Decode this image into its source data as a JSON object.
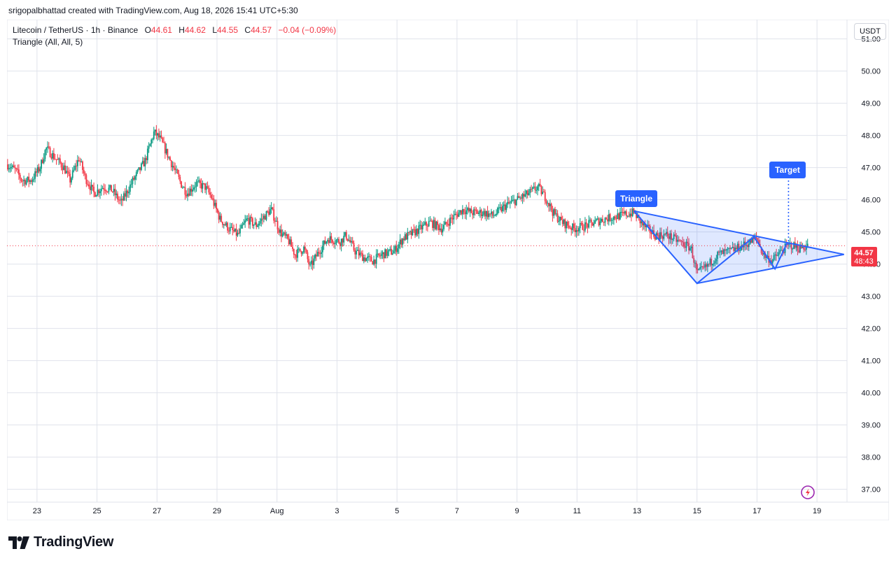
{
  "header": {
    "credit": "srigopalbhattad created with TradingView.com, Aug 18, 2026 15:41 UTC+5:30"
  },
  "legend": {
    "symbol": "Litecoin / TetherUS · 1h · Binance",
    "open_label": "O",
    "open": "44.61",
    "high_label": "H",
    "high": "44.62",
    "low_label": "L",
    "low": "44.55",
    "close_label": "C",
    "close": "44.57",
    "change": "−0.04 (−0.09%)",
    "indicator": "Triangle (All, All, 5)"
  },
  "price_axis": {
    "unit": "USDT"
  },
  "annotations": {
    "triangle": "Triangle",
    "target": "Target"
  },
  "price_tag": {
    "price": "44.57",
    "countdown": "48:43"
  },
  "brand": {
    "name": "TradingView"
  },
  "colors": {
    "up": "#089981",
    "down": "#f23645",
    "pattern": "#2962ff",
    "pattern_fill": "rgba(41,98,255,0.15)",
    "grid": "#e0e3eb",
    "text": "#131722"
  },
  "chart_data": {
    "type": "candlestick",
    "interval": "1h",
    "ylim": [
      36.6,
      51.6
    ],
    "y_ticks": [
      "37.00",
      "38.00",
      "39.00",
      "40.00",
      "41.00",
      "42.00",
      "43.00",
      "44.00",
      "45.00",
      "46.00",
      "47.00",
      "48.00",
      "49.00",
      "50.00",
      "51.00"
    ],
    "x_ticks": [
      "23",
      "25",
      "27",
      "29",
      "Aug",
      "3",
      "5",
      "7",
      "9",
      "11",
      "13",
      "15",
      "17",
      "19"
    ],
    "x_tick_days": [
      23,
      25,
      27,
      29,
      31,
      33,
      35,
      37,
      39,
      41,
      43,
      45,
      47,
      49
    ],
    "xlim_days": [
      22.0,
      50.0
    ],
    "price_path": [
      [
        22.0,
        47.1
      ],
      [
        22.3,
        46.9
      ],
      [
        22.5,
        46.6
      ],
      [
        22.8,
        46.6
      ],
      [
        23.1,
        47.0
      ],
      [
        23.3,
        47.6
      ],
      [
        23.6,
        47.3
      ],
      [
        23.9,
        47.0
      ],
      [
        24.1,
        46.6
      ],
      [
        24.4,
        47.3
      ],
      [
        24.6,
        46.7
      ],
      [
        24.9,
        46.2
      ],
      [
        25.2,
        46.4
      ],
      [
        25.5,
        46.3
      ],
      [
        25.8,
        45.9
      ],
      [
        26.2,
        46.6
      ],
      [
        26.6,
        47.2
      ],
      [
        26.9,
        48.1
      ],
      [
        27.1,
        47.9
      ],
      [
        27.3,
        47.5
      ],
      [
        27.6,
        46.9
      ],
      [
        27.8,
        46.5
      ],
      [
        28.0,
        46.2
      ],
      [
        28.3,
        46.5
      ],
      [
        28.6,
        46.4
      ],
      [
        28.8,
        46.1
      ],
      [
        29.1,
        45.4
      ],
      [
        29.4,
        45.1
      ],
      [
        29.7,
        44.9
      ],
      [
        30.0,
        45.4
      ],
      [
        30.3,
        45.2
      ],
      [
        30.6,
        45.5
      ],
      [
        30.8,
        45.7
      ],
      [
        31.1,
        45.0
      ],
      [
        31.4,
        44.7
      ],
      [
        31.6,
        44.3
      ],
      [
        31.9,
        44.5
      ],
      [
        32.1,
        43.9
      ],
      [
        32.4,
        44.4
      ],
      [
        32.7,
        44.8
      ],
      [
        33.1,
        44.7
      ],
      [
        33.3,
        44.9
      ],
      [
        33.6,
        44.4
      ],
      [
        33.9,
        44.2
      ],
      [
        34.2,
        44.1
      ],
      [
        34.5,
        44.3
      ],
      [
        34.9,
        44.4
      ],
      [
        35.2,
        44.8
      ],
      [
        35.6,
        45.0
      ],
      [
        36.1,
        45.3
      ],
      [
        36.5,
        45.1
      ],
      [
        36.8,
        45.4
      ],
      [
        37.2,
        45.7
      ],
      [
        37.5,
        45.6
      ],
      [
        37.9,
        45.6
      ],
      [
        38.2,
        45.5
      ],
      [
        38.6,
        45.8
      ],
      [
        39.0,
        46.0
      ],
      [
        39.4,
        46.2
      ],
      [
        39.7,
        46.4
      ],
      [
        40.0,
        46.0
      ],
      [
        40.2,
        45.6
      ],
      [
        40.5,
        45.3
      ],
      [
        40.9,
        45.1
      ],
      [
        41.3,
        45.2
      ],
      [
        41.6,
        45.3
      ],
      [
        41.9,
        45.4
      ],
      [
        42.4,
        45.5
      ],
      [
        42.9,
        45.6
      ],
      [
        43.2,
        45.2
      ],
      [
        43.6,
        44.9
      ],
      [
        44.0,
        44.9
      ],
      [
        44.4,
        44.7
      ],
      [
        44.8,
        44.5
      ],
      [
        45.0,
        43.7
      ],
      [
        45.3,
        43.9
      ],
      [
        45.7,
        44.3
      ],
      [
        46.1,
        44.4
      ],
      [
        46.6,
        44.6
      ],
      [
        47.0,
        44.8
      ],
      [
        47.2,
        44.3
      ],
      [
        47.5,
        44.1
      ],
      [
        47.8,
        44.4
      ],
      [
        48.1,
        44.6
      ],
      [
        48.4,
        44.5
      ],
      [
        48.7,
        44.57
      ]
    ],
    "triangle_points": [
      {
        "day": 42.9,
        "price": 45.65
      },
      {
        "day": 45.0,
        "price": 43.4
      },
      {
        "day": 46.9,
        "price": 44.85
      },
      {
        "day": 47.6,
        "price": 43.85
      },
      {
        "day": 48.0,
        "price": 44.65
      },
      {
        "day": 49.9,
        "price": 44.3
      }
    ],
    "target_projection": {
      "day": 48.05,
      "from_price": 44.6,
      "to_price": 46.9
    },
    "last_price": 44.57
  }
}
